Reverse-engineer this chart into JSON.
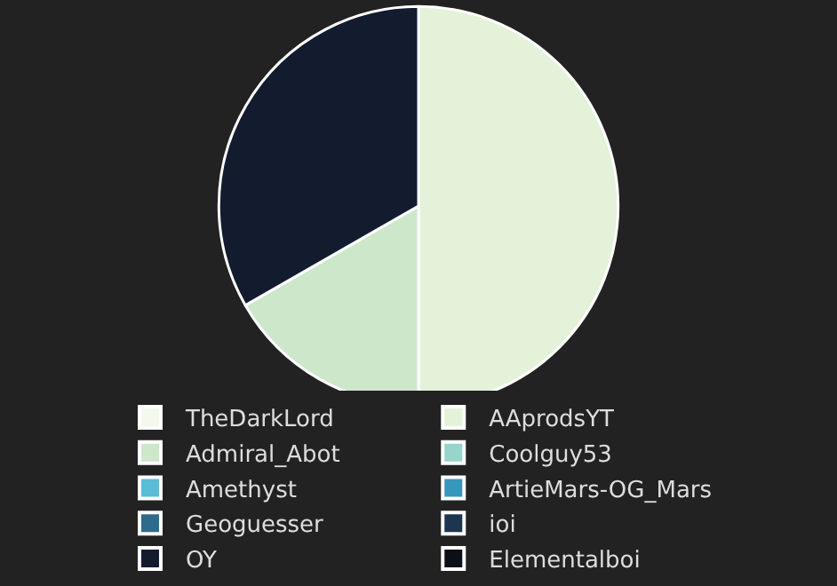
{
  "chart_data": {
    "type": "pie",
    "categories": [
      "TheDarkLord",
      "AAprodsYT",
      "Admiral_Abot",
      "Coolguy53",
      "Amethyst",
      "ArtieMars-OG_Mars",
      "Geoguesser",
      "ioi",
      "OY",
      "Elementalboi"
    ],
    "values": [
      0,
      50,
      16.7,
      0,
      0,
      0,
      0,
      0,
      33.3,
      0
    ],
    "colors": [
      "#f3f9ec",
      "#e4f2d9",
      "#cde7cb",
      "#96d4cc",
      "#5bbcd6",
      "#3896ba",
      "#2e6a8a",
      "#1e3550",
      "#131c2e",
      "#0b0f18"
    ],
    "legend": "bottom"
  }
}
